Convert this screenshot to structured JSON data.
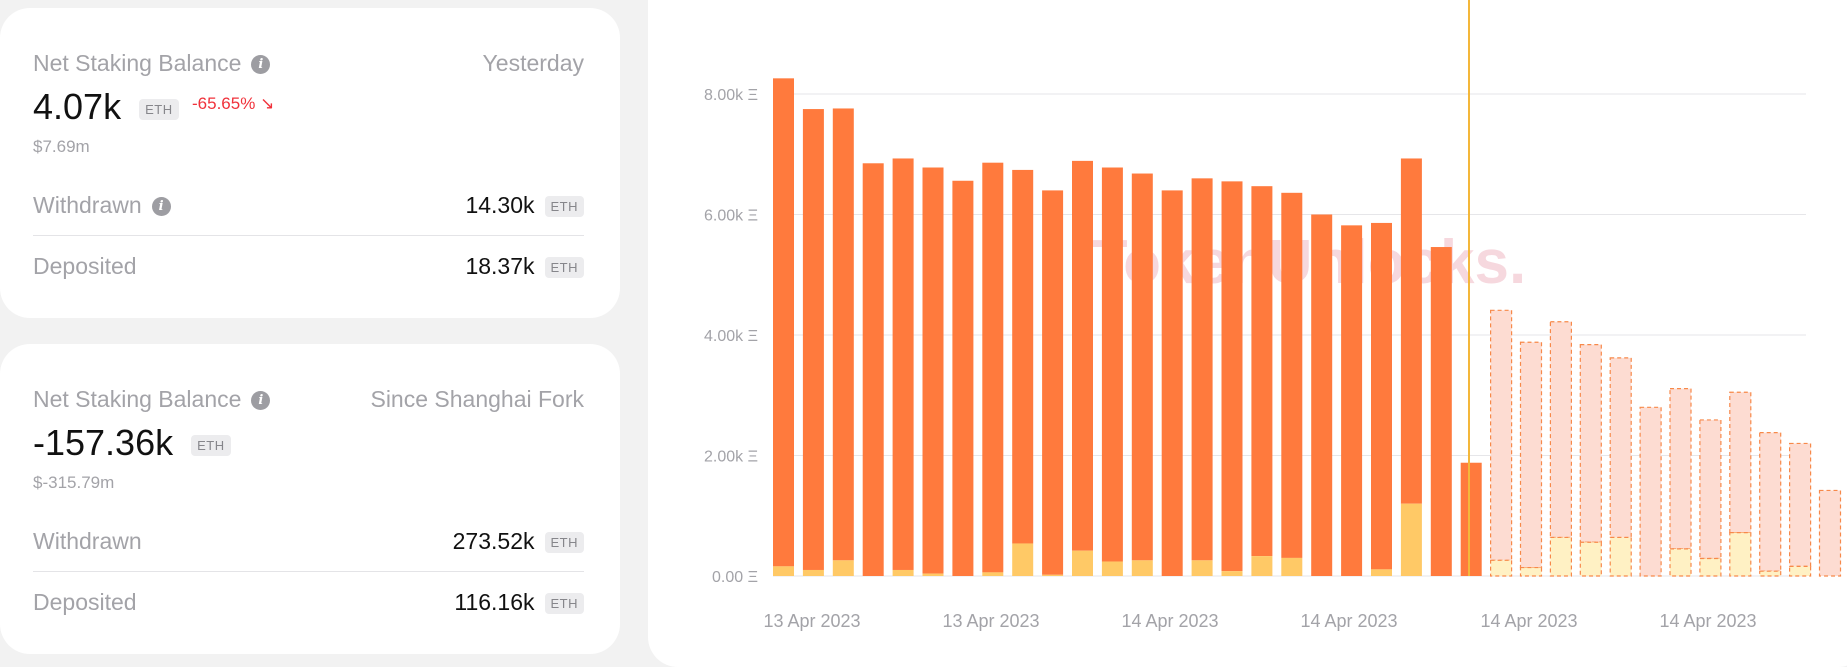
{
  "card1": {
    "label": "Net Staking Balance",
    "period": "Yesterday",
    "value": "4.07k",
    "unit": "ETH",
    "change": "-65.65%",
    "change_arrow": "↘",
    "usd": "$7.69m",
    "withdrawn_label": "Withdrawn",
    "withdrawn_value": "14.30k",
    "deposited_label": "Deposited",
    "deposited_value": "18.37k"
  },
  "card2": {
    "label": "Net Staking Balance",
    "period": "Since Shanghai Fork",
    "value": "-157.36k",
    "unit": "ETH",
    "usd": "$-315.79m",
    "withdrawn_label": "Withdrawn",
    "withdrawn_value": "273.52k",
    "deposited_label": "Deposited",
    "deposited_value": "116.16k"
  },
  "info_icon": "info-icon",
  "colors": {
    "withdrawn": "#ff7a3d",
    "deposited": "#ffc966",
    "forecast_withdrawn": "#fddcd2",
    "forecast_deposited": "#fff1c4",
    "forecast_stroke": "#f7894a",
    "cursor": "#f4b73a",
    "negative": "#f0323b"
  },
  "chart_data": {
    "type": "bar",
    "stacked": true,
    "y_ticks": [
      "0.00 Ξ",
      "2.00k Ξ",
      "4.00k Ξ",
      "6.00k Ξ",
      "8.00k Ξ"
    ],
    "ylim": [
      0,
      8500
    ],
    "x_tick_labels": [
      "13 Apr 2023",
      "13 Apr 2023",
      "14 Apr 2023",
      "14 Apr 2023",
      "14 Apr 2023",
      "14 Apr 2023"
    ],
    "watermark": "TokenUnlocks.",
    "series": [
      {
        "name": "Withdrawn",
        "values": [
          8100,
          7650,
          7500,
          6850,
          6830,
          6740,
          6560,
          6800,
          6200,
          6380,
          6470,
          6540,
          6420,
          6400,
          6340,
          6470,
          6140,
          6060,
          6000,
          5820,
          5750,
          5730,
          5460,
          1880,
          4150,
          3740,
          3580,
          3280,
          2980,
          2800,
          2660,
          2300,
          2330,
          2300,
          2040,
          1420
        ],
        "forecast_from_index": 24
      },
      {
        "name": "Deposited",
        "values": [
          160,
          100,
          260,
          0,
          100,
          40,
          0,
          60,
          540,
          20,
          420,
          240,
          260,
          0,
          260,
          80,
          330,
          300,
          0,
          0,
          110,
          1200,
          0,
          0,
          260,
          140,
          640,
          560,
          640,
          0,
          450,
          290,
          720,
          80,
          160,
          0
        ],
        "forecast_from_index": 24
      }
    ]
  }
}
